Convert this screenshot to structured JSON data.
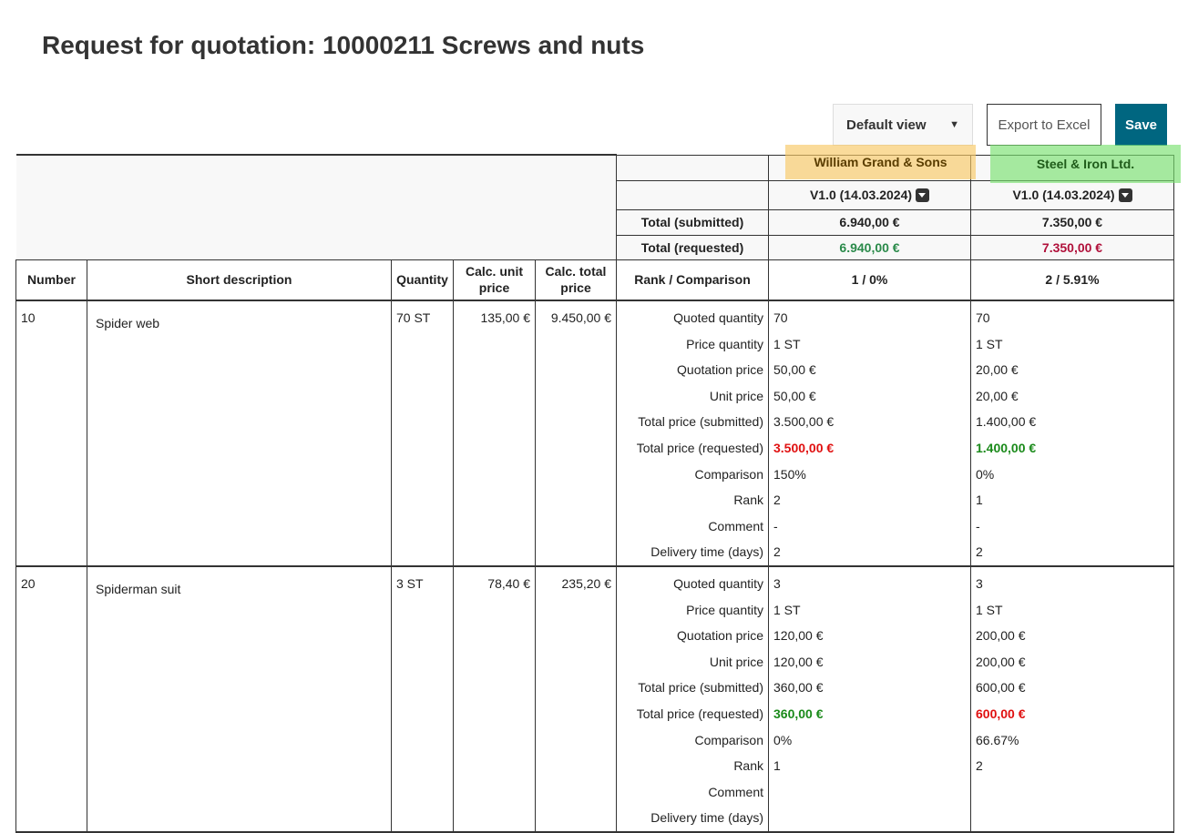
{
  "title": "Request for quotation: 10000211 Screws and nuts",
  "toolbar": {
    "view": "Default view",
    "export": "Export to Excel",
    "save": "Save"
  },
  "suppliers": [
    {
      "name": "William Grand & Sons",
      "version": "V1.0 (14.03.2024)",
      "total_submitted": "6.940,00 €",
      "total_requested": "6.940,00 €",
      "rank": "1 / 0%",
      "highlight": "#f7c864"
    },
    {
      "name": "Steel & Iron Ltd.",
      "version": "V1.0 (14.03.2024)",
      "total_submitted": "7.350,00 €",
      "total_requested": "7.350,00 €",
      "rank": "2 / 5.91%",
      "highlight": "#78e16e"
    }
  ],
  "summary_labels": {
    "submitted": "Total (submitted)",
    "requested": "Total (requested)"
  },
  "columns": [
    "Number",
    "Short description",
    "Quantity",
    "Calc. unit price",
    "Calc. total price",
    "Rank / Comparison"
  ],
  "detail_labels": [
    "Quoted quantity",
    "Price quantity",
    "Quotation price",
    "Unit price",
    "Total price (submitted)",
    "Total price (requested)",
    "Comparison",
    "Rank",
    "Comment",
    "Delivery time (days)"
  ],
  "items": [
    {
      "number": "10",
      "description": "Spider web",
      "quantity": "70 ST",
      "unit_price": "135,00 €",
      "total_price": "9.450,00 €",
      "s1": [
        "70",
        "1 ST",
        "50,00 €",
        "50,00 €",
        "3.500,00 €",
        "3.500,00 €",
        "150%",
        "2",
        "-",
        "2"
      ],
      "s2": [
        "70",
        "1 ST",
        "20,00 €",
        "20,00 €",
        "1.400,00 €",
        "1.400,00 €",
        "0%",
        "1",
        "-",
        "2"
      ]
    },
    {
      "number": "20",
      "description": "Spiderman suit",
      "quantity": "3 ST",
      "unit_price": "78,40 €",
      "total_price": "235,20 €",
      "s1": [
        "3",
        "1 ST",
        "120,00 €",
        "120,00 €",
        "360,00 €",
        "360,00 €",
        "0%",
        "1",
        "",
        ""
      ],
      "s2": [
        "3",
        "1 ST",
        "200,00 €",
        "200,00 €",
        "600,00 €",
        "600,00 €",
        "66.67%",
        "2",
        "",
        ""
      ]
    }
  ],
  "best_color": "#1a8a1a",
  "worst_color": "#e01010"
}
